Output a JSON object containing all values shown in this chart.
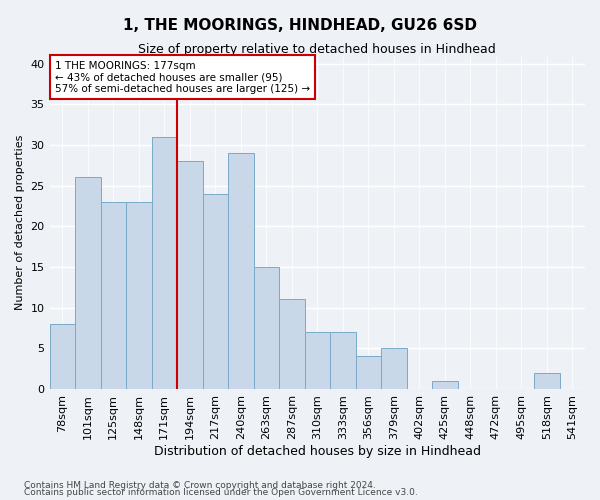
{
  "title": "1, THE MOORINGS, HINDHEAD, GU26 6SD",
  "subtitle": "Size of property relative to detached houses in Hindhead",
  "xlabel": "Distribution of detached houses by size in Hindhead",
  "ylabel": "Number of detached properties",
  "categories": [
    "78sqm",
    "101sqm",
    "125sqm",
    "148sqm",
    "171sqm",
    "194sqm",
    "217sqm",
    "240sqm",
    "263sqm",
    "287sqm",
    "310sqm",
    "333sqm",
    "356sqm",
    "379sqm",
    "402sqm",
    "425sqm",
    "448sqm",
    "472sqm",
    "495sqm",
    "518sqm",
    "541sqm"
  ],
  "values": [
    8,
    26,
    23,
    23,
    31,
    28,
    24,
    29,
    15,
    11,
    7,
    7,
    4,
    5,
    0,
    1,
    0,
    0,
    0,
    2,
    0
  ],
  "bar_color": "#c8d8e8",
  "bar_edge_color": "#7aaac8",
  "reference_line_color": "#cc0000",
  "annotation_line1": "1 THE MOORINGS: 177sqm",
  "annotation_line2": "← 43% of detached houses are smaller (95)",
  "annotation_line3": "57% of semi-detached houses are larger (125) →",
  "annotation_box_color": "#ffffff",
  "annotation_box_edge": "#cc0000",
  "ylim": [
    0,
    41
  ],
  "yticks": [
    0,
    5,
    10,
    15,
    20,
    25,
    30,
    35,
    40
  ],
  "footnote1": "Contains HM Land Registry data © Crown copyright and database right 2024.",
  "footnote2": "Contains public sector information licensed under the Open Government Licence v3.0.",
  "background_color": "#eef2f7",
  "grid_color": "#ffffff",
  "title_fontsize": 11,
  "subtitle_fontsize": 9,
  "ylabel_fontsize": 8,
  "xlabel_fontsize": 9,
  "tick_fontsize": 8,
  "footnote_fontsize": 6.5
}
